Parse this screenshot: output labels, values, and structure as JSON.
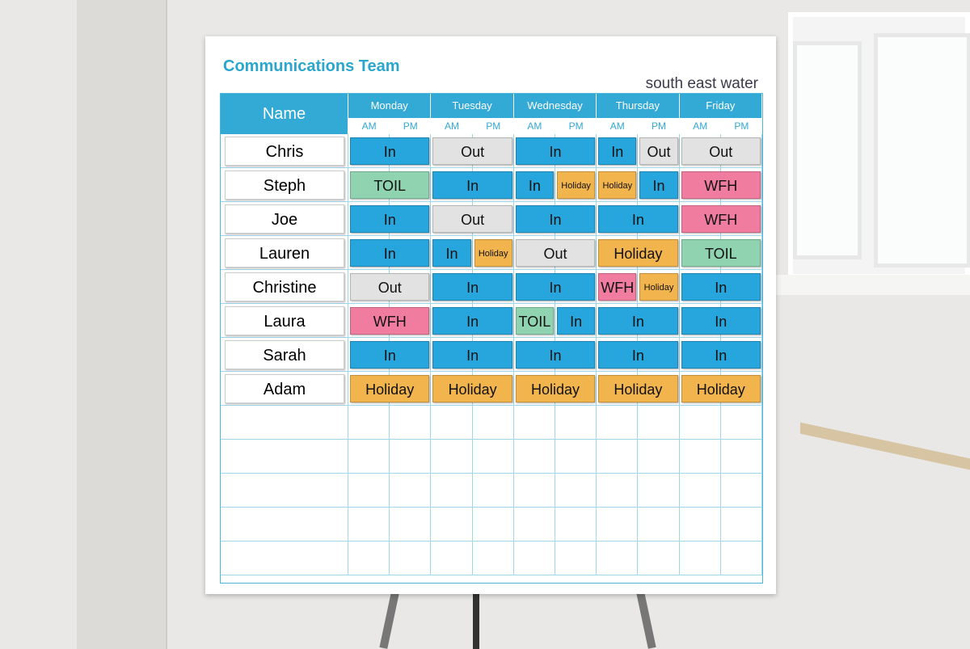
{
  "board": {
    "title": "Communications Team",
    "logo": "south east water"
  },
  "table": {
    "name_header": "Name",
    "days": [
      "Monday",
      "Tuesday",
      "Wednesday",
      "Thursday",
      "Friday"
    ],
    "halves": [
      "AM",
      "PM"
    ],
    "rows": [
      {
        "name": "Chris",
        "days": [
          [
            "In"
          ],
          [
            "Out"
          ],
          [
            "In"
          ],
          [
            "In",
            "Out"
          ],
          [
            "Out"
          ]
        ]
      },
      {
        "name": "Steph",
        "days": [
          [
            "TOIL"
          ],
          [
            "In"
          ],
          [
            "In",
            "Holiday"
          ],
          [
            "Holiday",
            "In"
          ],
          [
            "WFH"
          ]
        ]
      },
      {
        "name": "Joe",
        "days": [
          [
            "In"
          ],
          [
            "Out"
          ],
          [
            "In"
          ],
          [
            "In"
          ],
          [
            "WFH"
          ]
        ]
      },
      {
        "name": "Lauren",
        "days": [
          [
            "In"
          ],
          [
            "In",
            "Holiday"
          ],
          [
            "Out"
          ],
          [
            "Holiday"
          ],
          [
            "TOIL"
          ]
        ]
      },
      {
        "name": "Christine",
        "days": [
          [
            "Out"
          ],
          [
            "In"
          ],
          [
            "In"
          ],
          [
            "WFH",
            "Holiday"
          ],
          [
            "In"
          ]
        ]
      },
      {
        "name": "Laura",
        "days": [
          [
            "WFH"
          ],
          [
            "In"
          ],
          [
            "TOIL",
            "In"
          ],
          [
            "In"
          ],
          [
            "In"
          ]
        ]
      },
      {
        "name": "Sarah",
        "days": [
          [
            "In"
          ],
          [
            "In"
          ],
          [
            "In"
          ],
          [
            "In"
          ],
          [
            "In"
          ]
        ]
      },
      {
        "name": "Adam",
        "days": [
          [
            "Holiday"
          ],
          [
            "Holiday"
          ],
          [
            "Holiday"
          ],
          [
            "Holiday"
          ],
          [
            "Holiday"
          ]
        ]
      }
    ]
  },
  "magnet_colors": {
    "In": "#27a6dd",
    "Out": "#e2e2e2",
    "TOIL": "#8fd3b0",
    "Holiday": "#f2b44c",
    "WFH": "#f07ca0"
  }
}
